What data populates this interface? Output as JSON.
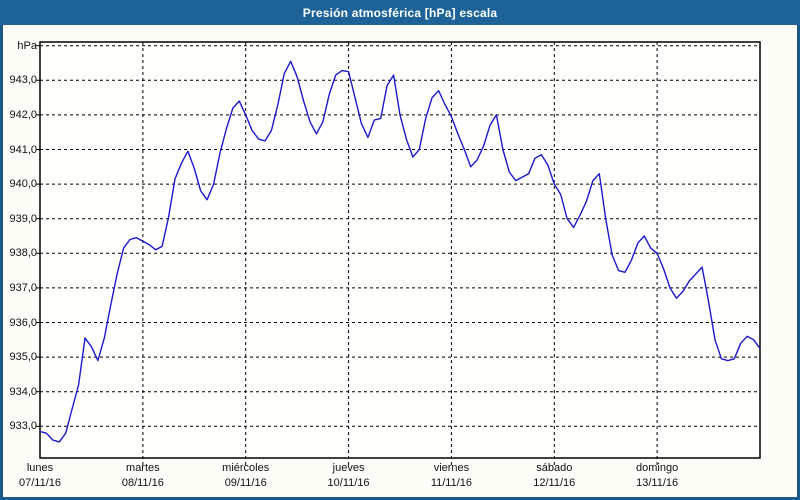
{
  "window": {
    "title": "Presión atmosférica [hPa] escala"
  },
  "colors": {
    "titlebar": "#1e6397",
    "window_border": "#1a5a88",
    "background": "#fdfdf7",
    "plot_background": "#fffffd",
    "line": "#1a1acd",
    "grid": "#000000",
    "text": "#111111",
    "title_text": "#ffffff"
  },
  "chart_data": {
    "type": "line",
    "title": "Presión atmosférica [hPa] escala",
    "unit_label": "hPa",
    "legend_position": "none",
    "grid": "dashed",
    "y_axis": {
      "label": "hPa",
      "tick_values": [
        943,
        942,
        941,
        940,
        939,
        938,
        937,
        936,
        935,
        934,
        933
      ],
      "tick_labels": [
        "943,0",
        "942,0",
        "941,0",
        "940,0",
        "939,0",
        "938,0",
        "937,0",
        "936,0",
        "935,0",
        "934,0",
        "933,0"
      ],
      "range": [
        932.1,
        944.1
      ],
      "unlabeled_top_gridline_value": 944
    },
    "x_axis": {
      "range_days": [
        0,
        7
      ],
      "tick_labels": [
        {
          "day": "lunes",
          "date": "07/11/16"
        },
        {
          "day": "martes",
          "date": "08/11/16"
        },
        {
          "day": "miércoles",
          "date": "09/11/16"
        },
        {
          "day": "jueves",
          "date": "10/11/16"
        },
        {
          "day": "viernes",
          "date": "11/11/16"
        },
        {
          "day": "sábado",
          "date": "12/11/16"
        },
        {
          "day": "domingo",
          "date": "13/11/16"
        }
      ]
    },
    "series": [
      {
        "name": "Presión atmosférica",
        "unit": "hPa",
        "color": "#1a1acd",
        "start": "lunes 07/11/16 00:00",
        "sample_interval_hours": 1.5,
        "values": [
          932.85,
          932.8,
          932.6,
          932.55,
          932.8,
          933.5,
          934.2,
          935.55,
          935.3,
          934.9,
          935.55,
          936.5,
          937.4,
          938.15,
          938.4,
          938.45,
          938.35,
          938.25,
          938.1,
          938.2,
          939.05,
          940.15,
          940.6,
          940.95,
          940.45,
          939.8,
          939.55,
          940.0,
          940.9,
          941.6,
          942.2,
          942.4,
          942.0,
          941.55,
          941.3,
          941.25,
          941.55,
          942.3,
          943.2,
          943.55,
          943.1,
          942.4,
          941.8,
          941.45,
          941.8,
          942.6,
          943.15,
          943.28,
          943.25,
          942.5,
          941.75,
          941.35,
          941.85,
          941.9,
          942.85,
          943.15,
          942.0,
          941.3,
          940.78,
          941.0,
          941.9,
          942.5,
          942.7,
          942.3,
          941.95,
          941.45,
          941.0,
          940.5,
          940.7,
          941.1,
          941.7,
          942.0,
          941.0,
          940.35,
          940.1,
          940.2,
          940.3,
          940.75,
          940.85,
          940.55,
          940.0,
          939.7,
          939.0,
          938.75,
          939.1,
          939.5,
          940.1,
          940.3,
          939.0,
          937.95,
          937.5,
          937.45,
          937.8,
          938.3,
          938.5,
          938.15,
          938.0,
          937.55,
          937.0,
          936.7,
          936.9,
          937.2,
          937.4,
          937.6,
          936.6,
          935.5,
          934.95,
          934.9,
          934.95,
          935.4,
          935.6,
          935.5,
          935.25
        ]
      }
    ]
  }
}
